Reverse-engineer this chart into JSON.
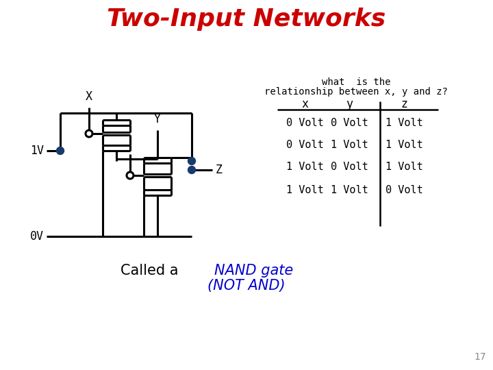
{
  "title": "Two-Input Networks",
  "title_color": "#cc0000",
  "title_fontsize": 26,
  "bg_color": "#ffffff",
  "table_header_q1": "what  is the",
  "table_header_q2": "relationship between x, y and z?",
  "table_col_headers": [
    "x",
    "y",
    "z"
  ],
  "table_rows": [
    [
      "0 Volt",
      "0 Volt",
      "1 Volt"
    ],
    [
      "0 Volt",
      "1 Volt",
      "1 Volt"
    ],
    [
      "1 Volt",
      "0 Volt",
      "1 Volt"
    ],
    [
      "1 Volt",
      "1 Volt",
      "0 Volt"
    ]
  ],
  "caption_color_normal": "#000000",
  "caption_color_italic": "#0000cc",
  "page_number": "17",
  "label_X": "X",
  "label_Y": "Y",
  "label_Z": "Z",
  "label_1V": "1V",
  "label_0V": "0V",
  "dot_color": "#1a3a6e",
  "line_color": "#000000",
  "line_width": 2.2
}
